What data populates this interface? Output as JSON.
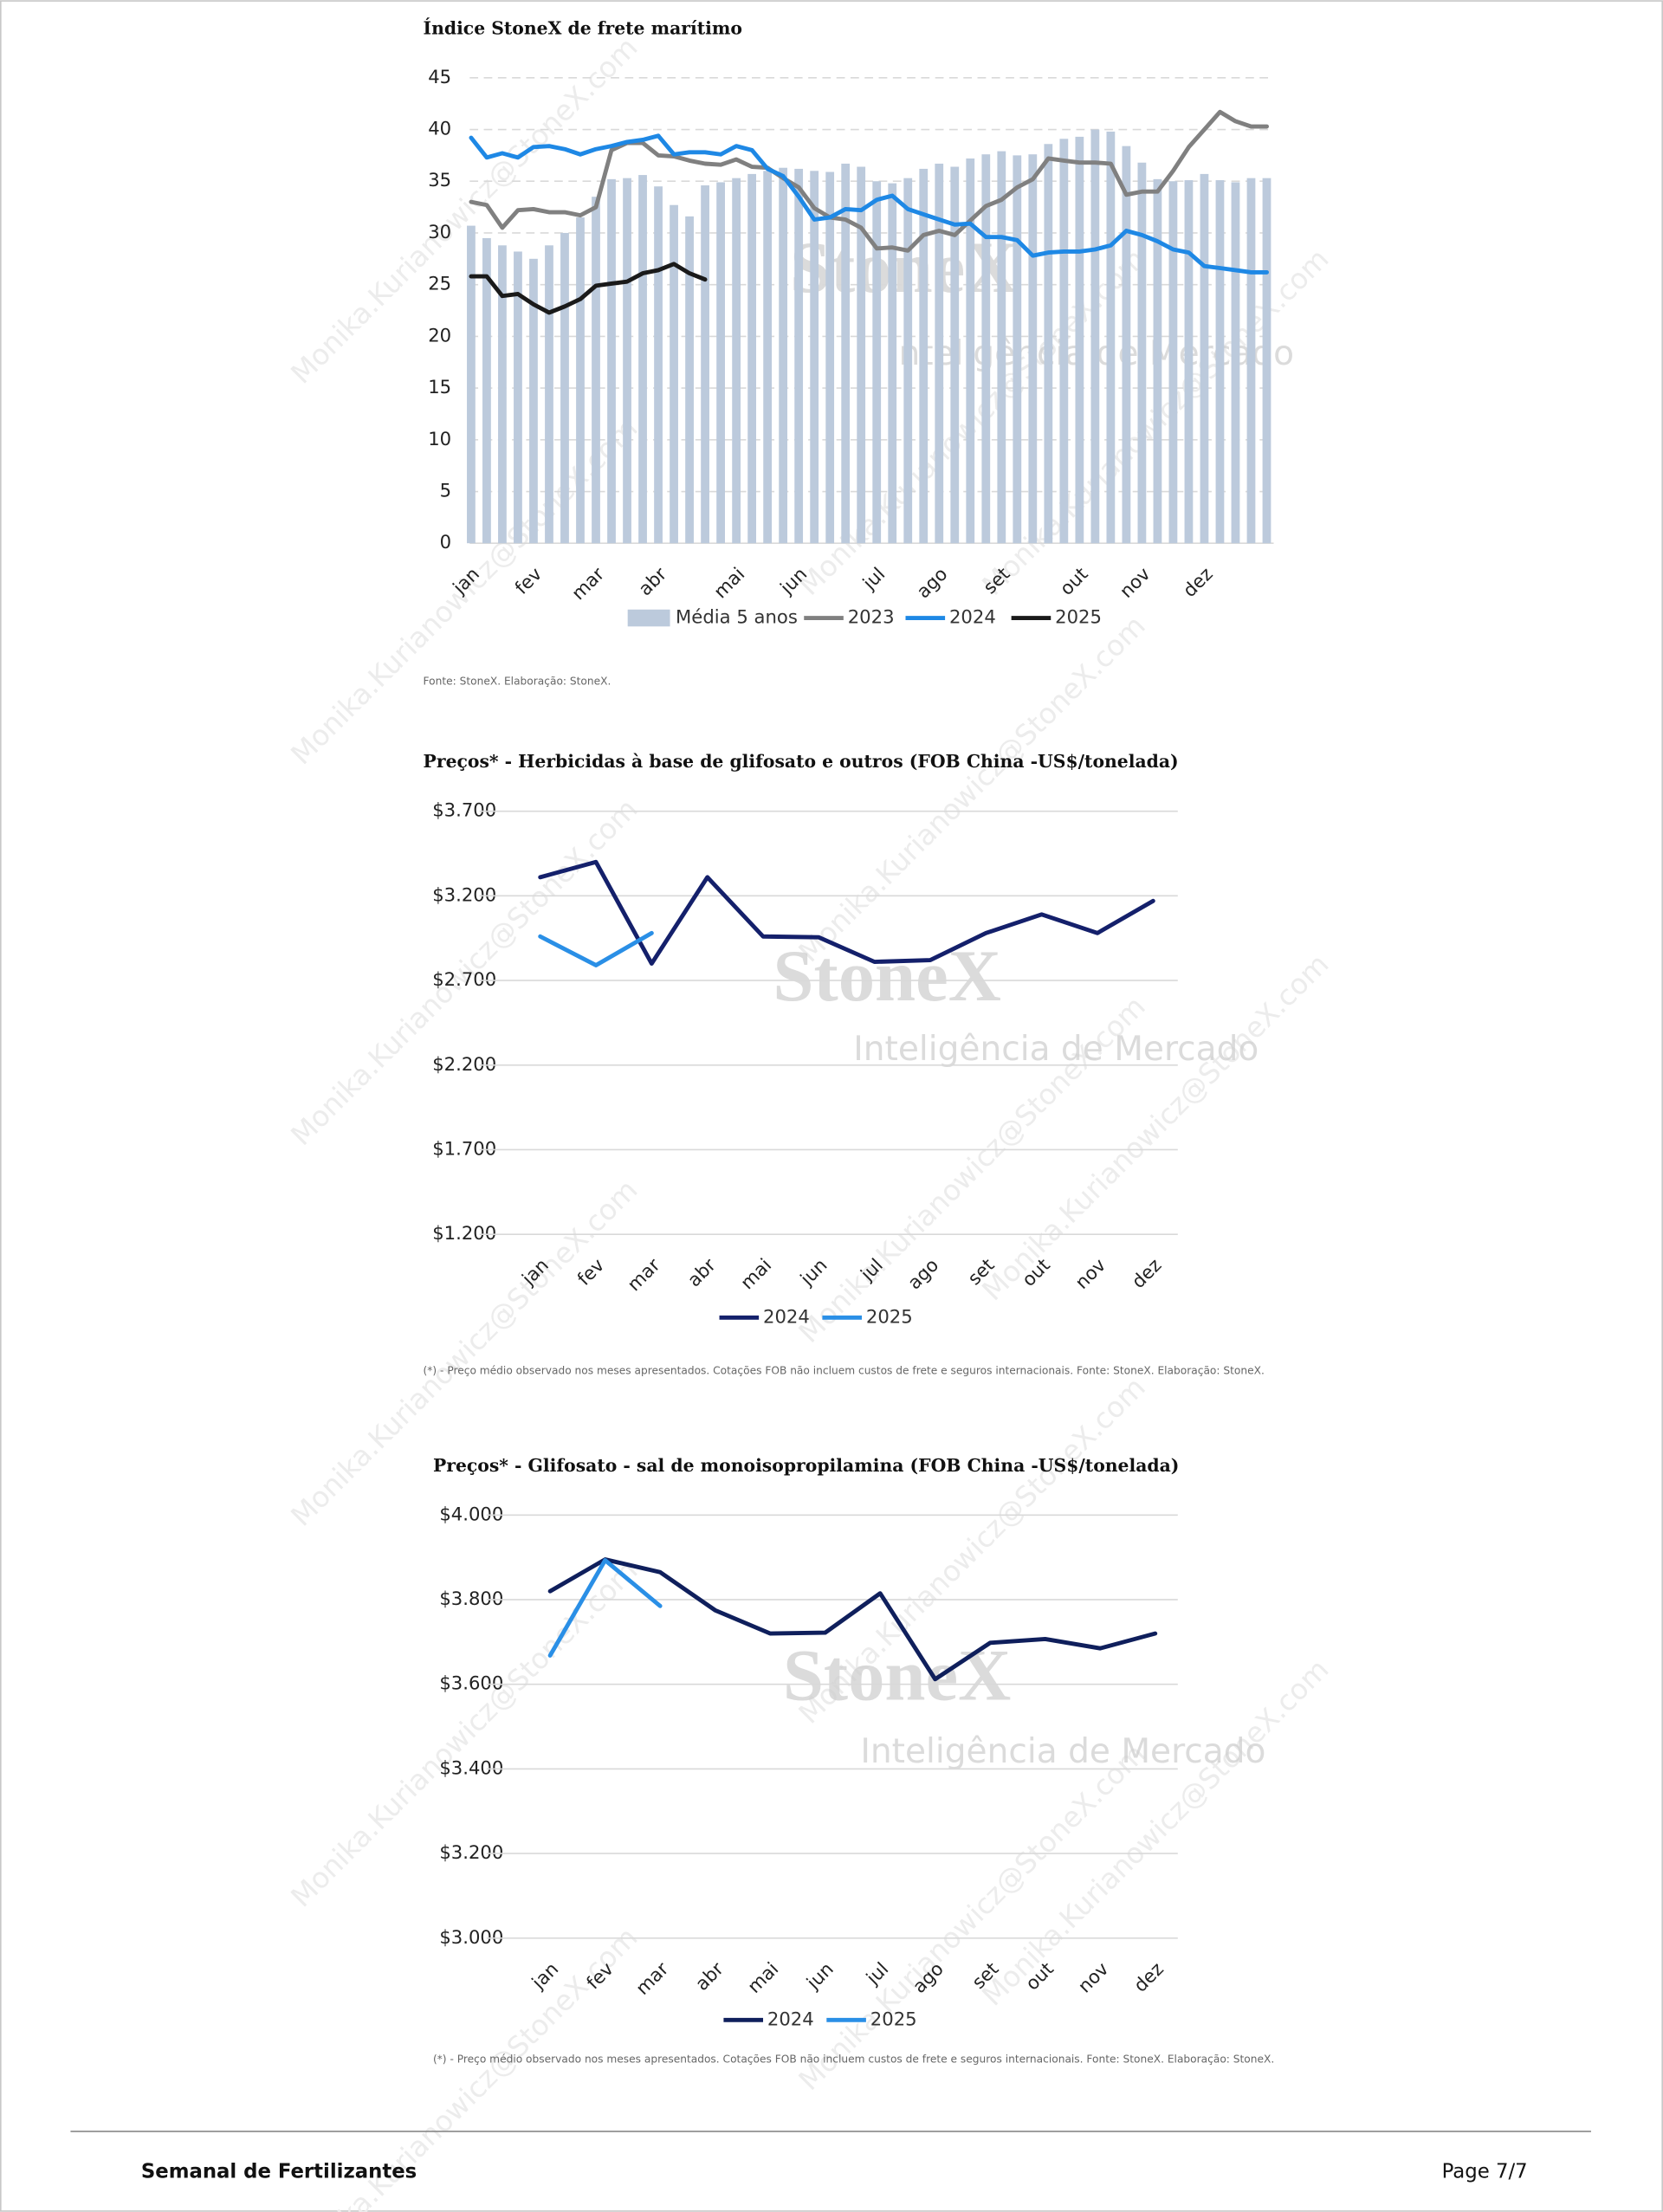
{
  "chart_data": [
    {
      "type": "bar_line",
      "title": "Índice StoneX de frete marítimo",
      "categories": [
        "jan",
        null,
        null,
        null,
        "fev",
        null,
        null,
        null,
        "mar",
        null,
        null,
        null,
        "abr",
        null,
        null,
        null,
        null,
        "mai",
        null,
        null,
        null,
        "jun",
        null,
        null,
        null,
        null,
        "jul",
        null,
        null,
        null,
        "ago",
        null,
        null,
        null,
        "set",
        null,
        null,
        null,
        null,
        "out",
        null,
        null,
        null,
        "nov",
        null,
        null,
        null,
        "dez",
        null,
        null,
        null,
        null
      ],
      "series": [
        {
          "name": "Média 5 anos",
          "type": "bar",
          "color": "#bccadc",
          "values": [
            30.7,
            29.5,
            28.8,
            28.2,
            27.5,
            28.8,
            30,
            31.5,
            33.5,
            35.2,
            35.3,
            35.6,
            34.5,
            32.7,
            31.6,
            34.6,
            34.9,
            35.3,
            35.7,
            36,
            36.3,
            36.2,
            36,
            35.9,
            36.7,
            36.4,
            35,
            34.8,
            35.3,
            36.2,
            36.7,
            36.4,
            37.2,
            37.6,
            37.9,
            37.5,
            37.6,
            38.6,
            39.1,
            39.3,
            40,
            39.8,
            38.4,
            36.8,
            35.2,
            35,
            35.1,
            35.7,
            35.1,
            34.9,
            35.3,
            35.3
          ]
        },
        {
          "name": "2023",
          "type": "line",
          "color": "#808080",
          "values": [
            33,
            32.7,
            30.5,
            32.2,
            32.3,
            32,
            32,
            31.7,
            32.5,
            38,
            38.7,
            38.7,
            37.5,
            37.4,
            37,
            36.7,
            36.6,
            37.1,
            36.4,
            36.3,
            35.3,
            34.4,
            32.4,
            31.5,
            31.3,
            30.5,
            28.5,
            28.6,
            28.3,
            29.8,
            30.2,
            29.8,
            31.2,
            32.6,
            33.2,
            34.4,
            35.2,
            37.2,
            37,
            36.8,
            36.8,
            36.7,
            33.7,
            34,
            34,
            36,
            38.3,
            40,
            41.7,
            40.8,
            40.3,
            40.3
          ]
        },
        {
          "name": "2024",
          "type": "line",
          "color": "#1e88e5",
          "values": [
            39.2,
            37.3,
            37.7,
            37.3,
            38.3,
            38.4,
            38.1,
            37.6,
            38.1,
            38.4,
            38.8,
            39,
            39.4,
            37.6,
            37.8,
            37.8,
            37.6,
            38.4,
            38,
            36.2,
            35.5,
            33.5,
            31.3,
            31.5,
            32.3,
            32.2,
            33.2,
            33.6,
            32.3,
            31.8,
            31.3,
            30.8,
            30.9,
            29.6,
            29.6,
            29.3,
            27.8,
            28.1,
            28.2,
            28.2,
            28.4,
            28.8,
            30.2,
            29.8,
            29.2,
            28.4,
            28.1,
            26.8,
            26.6,
            26.4,
            26.2,
            26.2
          ]
        },
        {
          "name": "2025",
          "type": "line",
          "color": "#1a1a1a",
          "values": [
            25.8,
            25.8,
            23.9,
            24.1,
            23.1,
            22.3,
            22.9,
            23.6,
            24.9,
            25.1,
            25.3,
            26.1,
            26.4,
            27,
            26.1,
            25.5,
            null,
            null,
            null,
            null,
            null,
            null,
            null,
            null,
            null,
            null,
            null,
            null,
            null,
            null,
            null,
            null,
            null,
            null,
            null,
            null,
            null,
            null,
            null,
            null,
            null,
            null,
            null,
            null,
            null,
            null,
            null,
            null,
            null,
            null,
            null,
            null
          ]
        }
      ],
      "ylim": [
        0,
        45
      ],
      "yticks": [
        0,
        5,
        10,
        15,
        20,
        25,
        30,
        35,
        40,
        45
      ],
      "grid": true,
      "legend": "bottom",
      "source": "Fonte: StoneX. Elaboração: StoneX."
    },
    {
      "type": "line",
      "title": "Preços* - Herbicidas à base de glifosato e outros (FOB China -US$/tonelada)",
      "categories": [
        "jan",
        "fev",
        "mar",
        "abr",
        "mai",
        "jun",
        "jul",
        "ago",
        "set",
        "out",
        "nov",
        "dez"
      ],
      "series": [
        {
          "name": "2024",
          "color": "#14206b",
          "values": [
            3310,
            3400,
            2800,
            3310,
            2960,
            2955,
            2810,
            2820,
            2980,
            3090,
            2980,
            3170
          ]
        },
        {
          "name": "2025",
          "color": "#2a8fe6",
          "values": [
            2960,
            2790,
            2980,
            null,
            null,
            null,
            null,
            null,
            null,
            null,
            null,
            null
          ]
        }
      ],
      "ylim": [
        1200,
        3700
      ],
      "yticks": [
        {
          "value": 1200,
          "label": "$1.200"
        },
        {
          "value": 1700,
          "label": "$1.700"
        },
        {
          "value": 2200,
          "label": "$2.200"
        },
        {
          "value": 2700,
          "label": "$2.700"
        },
        {
          "value": 3200,
          "label": "$3.200"
        },
        {
          "value": 3700,
          "label": "$3.700"
        }
      ],
      "grid": true,
      "legend": "bottom",
      "source": "(*) - Preço médio observado nos meses apresentados. Cotações FOB não incluem custos de frete e seguros internacionais. Fonte: StoneX. Elaboração: StoneX."
    },
    {
      "type": "line",
      "title": "Preços* - Glifosato - sal de monoisopropilamina (FOB China -US$/tonelada)",
      "categories": [
        "jan",
        "fev",
        "mar",
        "abr",
        "mai",
        "jun",
        "jul",
        "ago",
        "set",
        "out",
        "nov",
        "dez"
      ],
      "series": [
        {
          "name": "2024",
          "color": "#0f1f5c",
          "values": [
            3820,
            3895,
            3865,
            3775,
            3720,
            3722,
            3815,
            3612,
            3698,
            3707,
            3685,
            3720
          ]
        },
        {
          "name": "2025",
          "color": "#2a8fe6",
          "values": [
            3668,
            3893,
            3785,
            null,
            null,
            null,
            null,
            null,
            null,
            null,
            null,
            null
          ]
        }
      ],
      "ylim": [
        3000,
        4000
      ],
      "yticks": [
        {
          "value": 3000,
          "label": "$3.000"
        },
        {
          "value": 3200,
          "label": "$3.200"
        },
        {
          "value": 3400,
          "label": "$3.400"
        },
        {
          "value": 3600,
          "label": "$3.600"
        },
        {
          "value": 3800,
          "label": "$3.800"
        },
        {
          "value": 4000,
          "label": "$4.000"
        }
      ],
      "grid": true,
      "legend": "bottom",
      "source": "(*) - Preço médio observado nos meses apresentados. Cotações FOB não incluem custos de frete e seguros internacionais. Fonte: StoneX. Elaboração: StoneX."
    }
  ],
  "watermark": {
    "brand": "StoneX",
    "tagline": "Inteligência de Mercado",
    "email": "Monika.Kurianowicz@StoneX.com"
  },
  "footer": {
    "left": "Semanal de Fertilizantes",
    "right": "Page 7/7"
  }
}
